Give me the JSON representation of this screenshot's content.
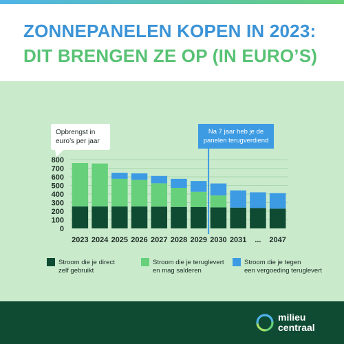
{
  "header": {
    "title_line1": "ZONNEPANELEN KOPEN IN 2023:",
    "title_line2": "DIT BRENGEN ZE OP (IN EURO’S)"
  },
  "colors": {
    "header_blue": "#3b93d6",
    "header_green": "#58c274",
    "chart_background": "#c9ebcc",
    "direct_use": "#0f4a33",
    "salderen": "#66d07a",
    "vergoeding": "#3d9be3",
    "footer": "#0f4a33"
  },
  "chart_data": {
    "type": "bar",
    "stacked": true,
    "ylabel_lines": [
      "Opbrengst in",
      "euro’s per jaar"
    ],
    "ylim": [
      0,
      800
    ],
    "yticks": [
      0,
      100,
      200,
      300,
      400,
      500,
      600,
      700,
      800
    ],
    "grid": true,
    "legend_position": "bottom",
    "categories": [
      "2023",
      "2024",
      "2025",
      "2026",
      "2027",
      "2028",
      "2029",
      "2030",
      "2031",
      "...",
      "2047"
    ],
    "series": [
      {
        "name_lines": [
          "Stroom die je direct",
          "zelf gebruikt"
        ],
        "color": "#0f4a33",
        "values": [
          255,
          255,
          255,
          255,
          253,
          250,
          248,
          245,
          242,
          238,
          230
        ]
      },
      {
        "name_lines": [
          "Stroom die je teruglevert",
          "en mag salderen"
        ],
        "color": "#66d07a",
        "values": [
          505,
          500,
          322,
          310,
          272,
          222,
          178,
          138,
          0,
          0,
          0
        ]
      },
      {
        "name_lines": [
          "Stroom die je tegen",
          "een vergoeding teruglevert"
        ],
        "color": "#3d9be3",
        "values": [
          0,
          0,
          70,
          75,
          85,
          105,
          125,
          140,
          200,
          182,
          180
        ]
      }
    ],
    "annotation": {
      "text_lines": [
        "Na 7 jaar heb je de",
        "panelen terugverdiend"
      ],
      "after_category": "2029"
    }
  },
  "footer": {
    "logo_line1": "milieu",
    "logo_line2": "centraal"
  }
}
